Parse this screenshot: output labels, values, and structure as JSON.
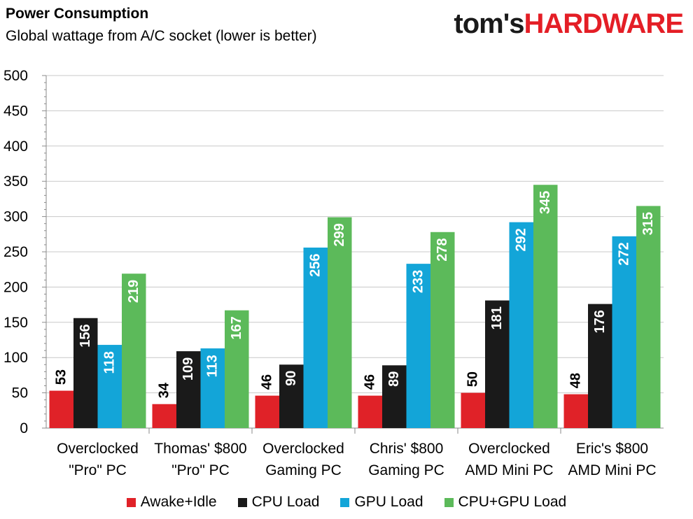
{
  "header": {
    "title": "Power Consumption",
    "subtitle": "Global wattage from A/C socket (lower is better)",
    "logo_part1": "tom's",
    "logo_part2": "HARDWARE"
  },
  "chart_data": {
    "type": "bar",
    "title": "Power Consumption",
    "subtitle": "Global wattage from A/C socket (lower is better)",
    "xlabel": "",
    "ylabel": "",
    "ylim": [
      0,
      500
    ],
    "yticks": [
      0,
      50,
      100,
      150,
      200,
      250,
      300,
      350,
      400,
      450,
      500
    ],
    "grid": true,
    "legend_position": "bottom",
    "categories": [
      [
        "Overclocked",
        "\"Pro\" PC"
      ],
      [
        "Thomas' $800",
        "\"Pro\" PC"
      ],
      [
        "Overclocked",
        "Gaming PC"
      ],
      [
        "Chris' $800",
        "Gaming PC"
      ],
      [
        "Overclocked",
        "AMD Mini PC"
      ],
      [
        "Eric's $800",
        "AMD Mini PC"
      ]
    ],
    "series": [
      {
        "name": "Awake+Idle",
        "color": "#e02228",
        "values": [
          53,
          34,
          46,
          46,
          50,
          48
        ]
      },
      {
        "name": "CPU Load",
        "color": "#1a1a1a",
        "values": [
          156,
          109,
          90,
          89,
          181,
          176
        ]
      },
      {
        "name": "GPU Load",
        "color": "#13a5d8",
        "values": [
          118,
          113,
          256,
          233,
          292,
          272
        ]
      },
      {
        "name": "CPU+GPU Load",
        "color": "#5cba5a",
        "values": [
          219,
          167,
          299,
          278,
          345,
          315
        ]
      }
    ]
  }
}
